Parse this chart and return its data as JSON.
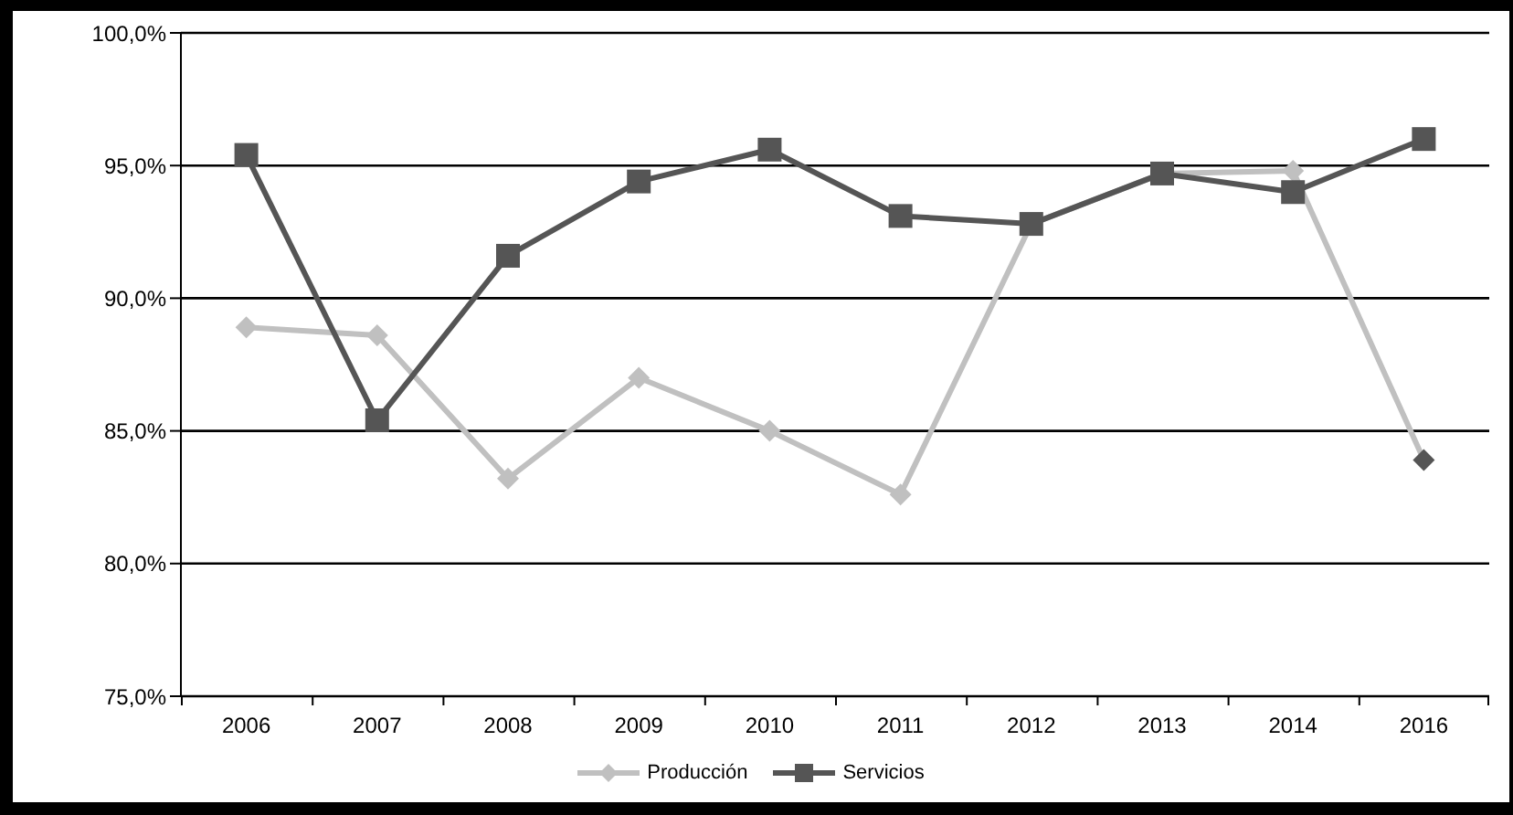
{
  "chart_data": {
    "type": "line",
    "categories": [
      "2006",
      "2007",
      "2008",
      "2009",
      "2010",
      "2011",
      "2012",
      "2013",
      "2014",
      "2016"
    ],
    "series": [
      {
        "name": "Producción",
        "color": "#c0c0c0",
        "marker": "diamond",
        "colors": [
          "#c0c0c0",
          "#c0c0c0",
          "#c0c0c0",
          "#c0c0c0",
          "#c0c0c0",
          "#c0c0c0",
          "#c0c0c0",
          "#c0c0c0",
          "#c0c0c0",
          "#555555"
        ],
        "values": [
          88.9,
          88.6,
          83.2,
          87.0,
          85.0,
          82.6,
          92.8,
          94.7,
          94.8,
          83.9
        ]
      },
      {
        "name": "Servicios",
        "color": "#555555",
        "marker": "square",
        "values": [
          95.4,
          85.4,
          91.6,
          94.4,
          95.6,
          93.1,
          92.8,
          94.7,
          94.0,
          96.0
        ]
      }
    ],
    "ylim": [
      75,
      100
    ],
    "yticks": [
      {
        "value": 75,
        "label": "75,0%"
      },
      {
        "value": 80,
        "label": "80,0%"
      },
      {
        "value": 85,
        "label": "85,0%"
      },
      {
        "value": 90,
        "label": "90,0%"
      },
      {
        "value": 95,
        "label": "95,0%"
      },
      {
        "value": 100,
        "label": "100,0%"
      }
    ],
    "grid": "y",
    "legend": "bottom",
    "line_style": "solid"
  }
}
